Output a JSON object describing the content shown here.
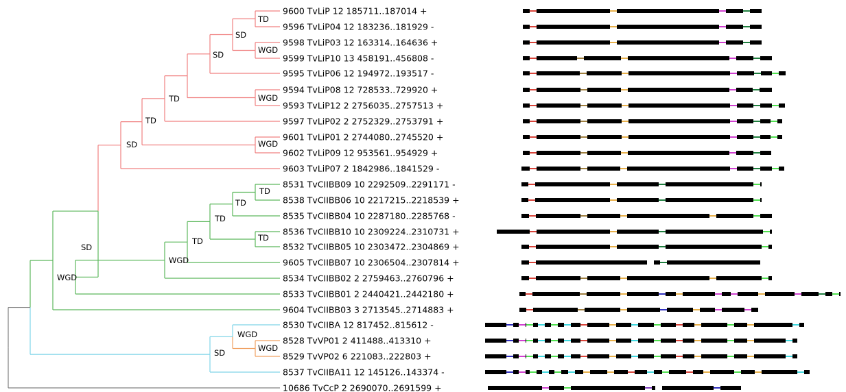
{
  "leaves": [
    "9600 TvLiP 12 185711..187014 +",
    "9596 TvLiP04 12 183236..181929 -",
    "9598 TvLiP03 12 163314..164636 +",
    "9599 TvLiP10 13 458191..456808 -",
    "9595 TvLiP06 12 194972..193517 -",
    "9594 TvLiP08 12 728533..729920 +",
    "9593 TvLiP12 2 2756035..2757513 +",
    "9597 TvLiP02 2 2752329..2753791 +",
    "9601 TvLiP01 2 2744080..2745520 +",
    "9602 TvLiP09 12 953561..954929 +",
    "9603 TvLiP07 2 1842986..1841529 -",
    "8531 TvCIIBB09 10 2292509..2291171 -",
    "8538 TvCIIBB06 10 2217215..2218539 +",
    "8535 TvCIIBB04 10 2287180..2285768 -",
    "8536 TvCIIBB10 10 2309224..2310731 +",
    "8532 TvCIIBB05 10 2303472..2304869 +",
    "9605 TvCIIBB07 10 2306504..2307814 +",
    "8534 TvCIIBB02 2 2759463..2760796 +",
    "8533 TvCIIBB01 2 2440421..2442180 +",
    "9604 TvCIIBB03 3 2713545..2714883 +",
    "8530 TvCIIBA 12 817452..815612 -",
    "8528 TvVP01 2 411488..413310 +",
    "8529 TvVP02 6 221083..222803 +",
    "8537 TvCIIBA11 12 145126..143374 -",
    "10686 TvCcP 2 2690070..2691599 +"
  ],
  "node_labels": {
    "n1": "TD",
    "n2": "SD",
    "n3": "WGD",
    "n4": "SD",
    "n5": "WGD",
    "n6": "TD",
    "n7": "WGD",
    "n8": "TD",
    "n9": "SD",
    "n10": "TD",
    "n11": "TD",
    "n12": "TD",
    "n13": "TD",
    "n14": "WGD",
    "n15": "SD",
    "n16": "WGD",
    "n17": "WGD",
    "n18": "WGD",
    "n19": "SD"
  },
  "clade_colors": {
    "lip": "#f08080",
    "ciibb": "#5cb85c",
    "ciiba": "#7fd4e8",
    "vp": "#f0a060",
    "root": "#808080"
  },
  "domain_colors": {
    "red": "#d9443a",
    "orange": "#e8b04a",
    "brown": "#a08040",
    "magenta": "#d040d0",
    "green": "#3cc040",
    "lime": "#50e050",
    "blue": "#3030c0",
    "cyan": "#40d8e0",
    "darkgreen": "#208040",
    "white": "#ffffff",
    "purple": "#8040c0"
  }
}
